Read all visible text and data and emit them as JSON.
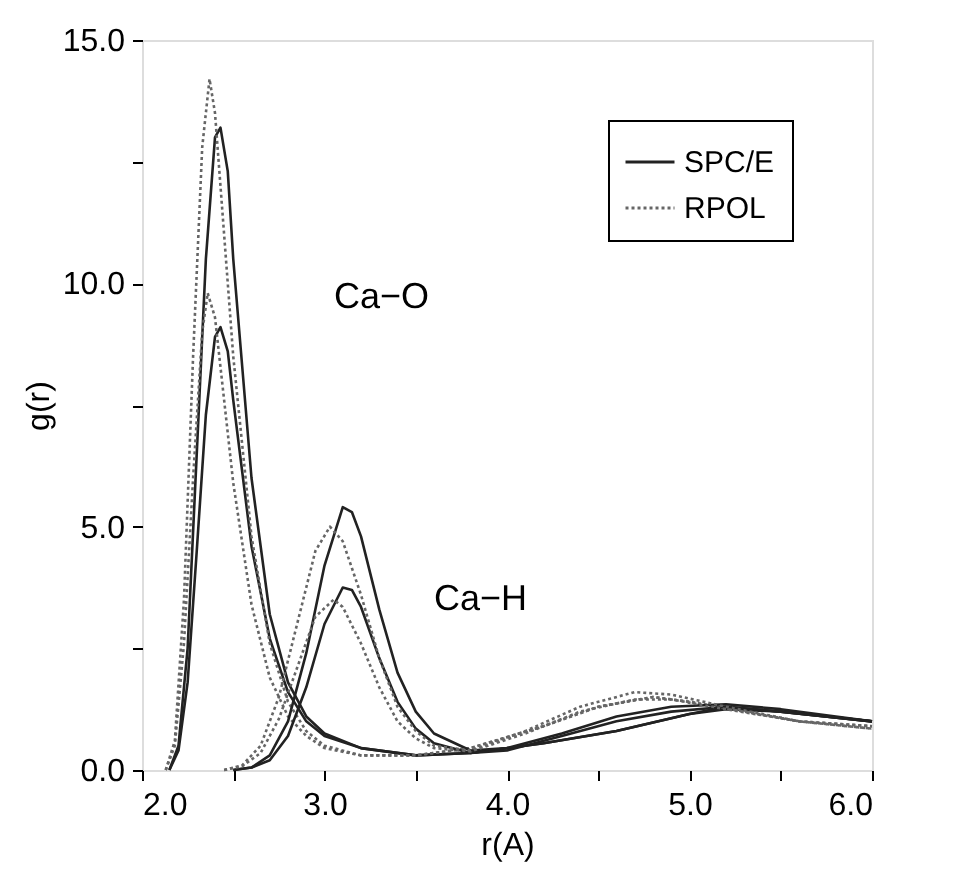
{
  "chart_data": {
    "type": "line",
    "xlabel": "r(A)",
    "ylabel": "g(r)",
    "xlim": [
      2.0,
      6.0
    ],
    "ylim": [
      0,
      15
    ],
    "xticks": [
      {
        "value": 2.0,
        "label": "2.0"
      },
      {
        "value": 2.5,
        "label": null
      },
      {
        "value": 3.0,
        "label": "3.0"
      },
      {
        "value": 3.5,
        "label": null
      },
      {
        "value": 4.0,
        "label": "4.0"
      },
      {
        "value": 4.5,
        "label": null
      },
      {
        "value": 5.0,
        "label": "5.0"
      },
      {
        "value": 5.5,
        "label": null
      },
      {
        "value": 6.0,
        "label": "6.0"
      }
    ],
    "yticks": [
      {
        "value": 0,
        "label": "0.0"
      },
      {
        "value": 2.5,
        "label": null
      },
      {
        "value": 5,
        "label": "5.0"
      },
      {
        "value": 7.5,
        "label": null
      },
      {
        "value": 10,
        "label": "10.0"
      },
      {
        "value": 12.5,
        "label": null
      },
      {
        "value": 15,
        "label": "15.0"
      }
    ],
    "grid": false,
    "legend": "top right",
    "marker": "none",
    "annotations": [
      "Ca−O",
      "Ca−H"
    ],
    "series": [
      {
        "name": "SPC/E",
        "color": "#222222",
        "line_style": "solid",
        "x": [
          2.15,
          2.2,
          2.25,
          2.3,
          2.35,
          2.4,
          2.43,
          2.47,
          2.5,
          2.6,
          2.7,
          2.8,
          2.9,
          3.0,
          3.2,
          3.5,
          3.8,
          4.2,
          4.6,
          5.0,
          5.2,
          5.5,
          6.0
        ],
        "values": [
          0,
          0.5,
          2.5,
          6.5,
          10.5,
          13.0,
          13.2,
          12.3,
          10.5,
          6.0,
          3.2,
          1.8,
          1.1,
          0.75,
          0.45,
          0.3,
          0.35,
          0.55,
          0.8,
          1.15,
          1.25,
          1.2,
          1.0
        ]
      },
      {
        "color": "#222222",
        "line_style": "solid",
        "x": [
          2.15,
          2.2,
          2.25,
          2.3,
          2.35,
          2.4,
          2.43,
          2.47,
          2.5,
          2.6,
          2.7,
          2.8,
          2.9,
          3.0,
          3.2,
          3.5,
          3.8,
          4.2,
          4.6,
          5.0,
          5.2,
          5.5,
          6.0
        ],
        "values": [
          0,
          0.4,
          1.8,
          4.5,
          7.3,
          8.9,
          9.1,
          8.6,
          7.6,
          4.6,
          2.7,
          1.6,
          1.0,
          0.7,
          0.45,
          0.3,
          0.35,
          0.55,
          0.8,
          1.15,
          1.3,
          1.2,
          1.0
        ]
      },
      {
        "name": "RPOL",
        "color": "#666666",
        "line_style": "dotted",
        "x": [
          2.13,
          2.18,
          2.23,
          2.28,
          2.33,
          2.37,
          2.4,
          2.45,
          2.5,
          2.6,
          2.7,
          2.8,
          2.9,
          3.0,
          3.2,
          3.5,
          3.8,
          4.2,
          4.5,
          4.8,
          5.0,
          5.3,
          5.6,
          6.0
        ],
        "values": [
          0,
          0.6,
          3.5,
          8.5,
          12.8,
          14.2,
          13.5,
          11.0,
          8.5,
          4.8,
          2.6,
          1.4,
          0.8,
          0.5,
          0.3,
          0.3,
          0.45,
          0.9,
          1.3,
          1.5,
          1.4,
          1.2,
          1.0,
          0.9
        ]
      },
      {
        "color": "#666666",
        "line_style": "dotted",
        "x": [
          2.13,
          2.18,
          2.23,
          2.28,
          2.33,
          2.36,
          2.4,
          2.45,
          2.5,
          2.6,
          2.7,
          2.8,
          2.9,
          3.0,
          3.2,
          3.5,
          3.8,
          4.2,
          4.5,
          4.8,
          5.0,
          5.3,
          5.6,
          6.0
        ],
        "values": [
          0,
          0.5,
          2.6,
          6.0,
          9.0,
          9.8,
          9.3,
          7.6,
          5.9,
          3.4,
          1.9,
          1.1,
          0.7,
          0.45,
          0.3,
          0.3,
          0.45,
          0.9,
          1.3,
          1.5,
          1.4,
          1.2,
          1.0,
          0.9
        ]
      },
      {
        "color": "#222222",
        "line_style": "solid",
        "x": [
          2.5,
          2.6,
          2.7,
          2.8,
          2.9,
          3.0,
          3.1,
          3.15,
          3.2,
          3.3,
          3.4,
          3.5,
          3.6,
          3.8,
          4.0,
          4.3,
          4.6,
          4.9,
          5.2,
          5.5,
          6.0
        ],
        "values": [
          0,
          0.05,
          0.3,
          1.0,
          2.4,
          4.2,
          5.4,
          5.3,
          4.8,
          3.3,
          2.0,
          1.2,
          0.75,
          0.4,
          0.45,
          0.75,
          1.1,
          1.3,
          1.35,
          1.25,
          1.0
        ]
      },
      {
        "color": "#222222",
        "line_style": "solid",
        "x": [
          2.5,
          2.6,
          2.7,
          2.8,
          2.9,
          3.0,
          3.1,
          3.15,
          3.2,
          3.3,
          3.4,
          3.5,
          3.6,
          3.8,
          4.0,
          4.3,
          4.6,
          4.9,
          5.2,
          5.5,
          6.0
        ],
        "values": [
          0,
          0.05,
          0.2,
          0.7,
          1.7,
          3.0,
          3.75,
          3.7,
          3.35,
          2.3,
          1.4,
          0.85,
          0.55,
          0.35,
          0.4,
          0.7,
          1.0,
          1.2,
          1.3,
          1.2,
          1.0
        ]
      },
      {
        "color": "#666666",
        "line_style": "dotted",
        "x": [
          2.45,
          2.55,
          2.65,
          2.75,
          2.85,
          2.95,
          3.03,
          3.1,
          3.2,
          3.3,
          3.4,
          3.5,
          3.6,
          3.8,
          4.1,
          4.4,
          4.7,
          4.9,
          5.2,
          5.6,
          6.0
        ],
        "values": [
          0,
          0.1,
          0.5,
          1.5,
          3.0,
          4.5,
          5.0,
          4.7,
          3.6,
          2.3,
          1.3,
          0.8,
          0.5,
          0.4,
          0.8,
          1.3,
          1.6,
          1.55,
          1.3,
          1.0,
          0.85
        ]
      },
      {
        "color": "#666666",
        "line_style": "dotted",
        "x": [
          2.45,
          2.55,
          2.65,
          2.75,
          2.85,
          2.95,
          3.05,
          3.1,
          3.2,
          3.3,
          3.4,
          3.5,
          3.6,
          3.8,
          4.1,
          4.4,
          4.7,
          4.9,
          5.2,
          5.6,
          6.0
        ],
        "values": [
          0,
          0.08,
          0.35,
          1.05,
          2.1,
          3.15,
          3.5,
          3.35,
          2.6,
          1.7,
          1.0,
          0.65,
          0.45,
          0.38,
          0.75,
          1.2,
          1.45,
          1.45,
          1.25,
          1.0,
          0.85
        ]
      }
    ]
  }
}
